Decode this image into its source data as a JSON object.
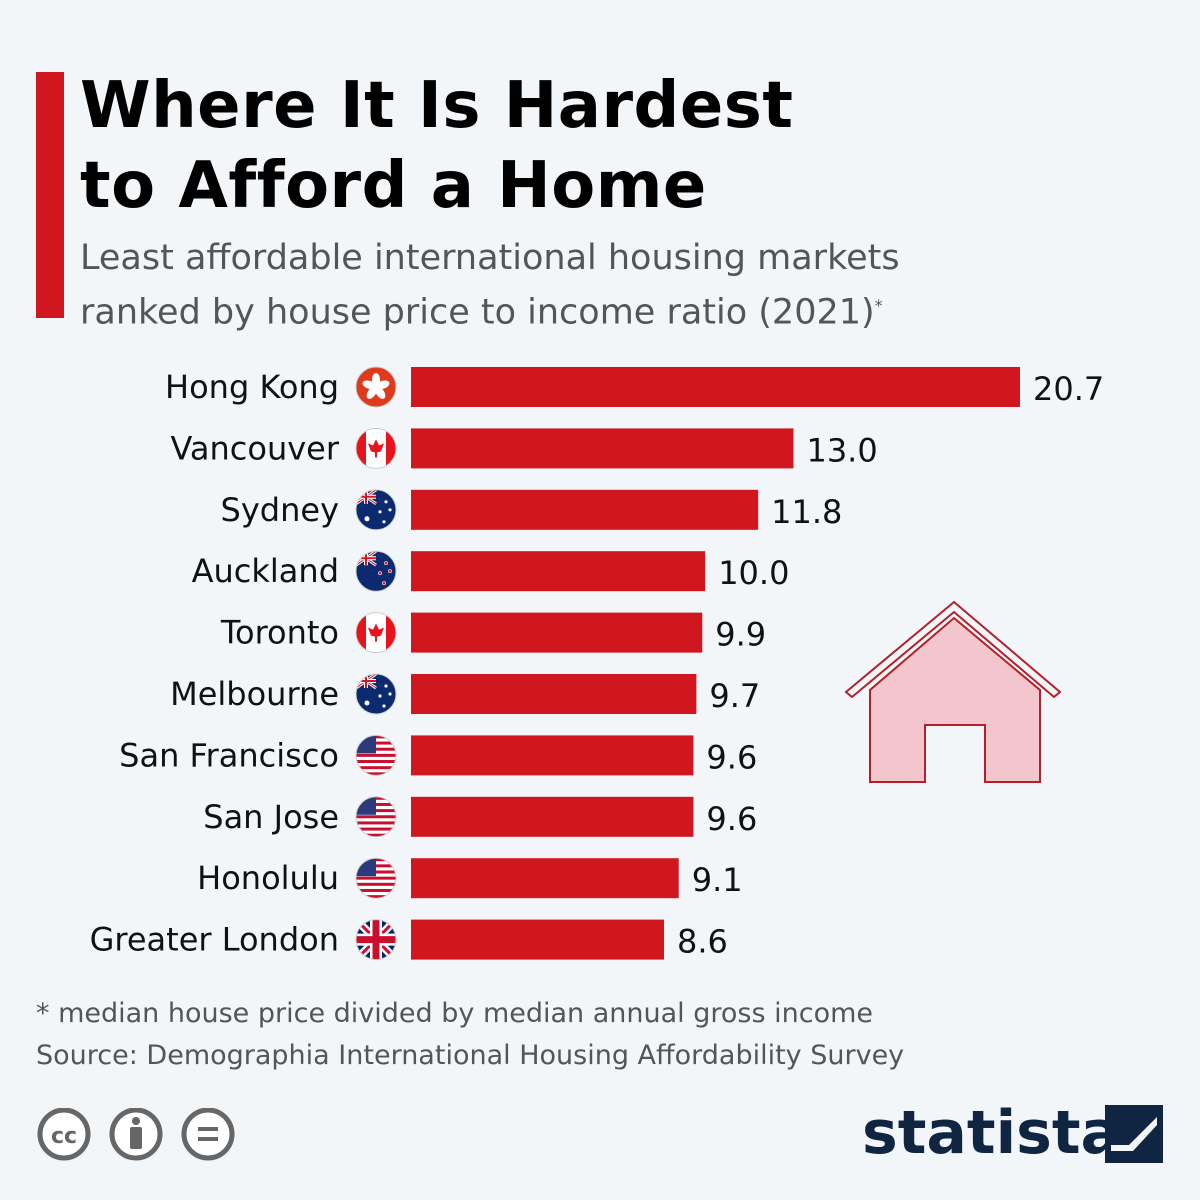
{
  "title_line1": "Where It Is Hardest",
  "title_line2": "to Afford a Home",
  "subtitle_line1": "Least affordable international housing markets",
  "subtitle_line2": "ranked by house price to income ratio (2021)",
  "subtitle_marker": "*",
  "chart_data": {
    "type": "bar",
    "orientation": "horizontal",
    "categories": [
      "Hong Kong",
      "Vancouver",
      "Sydney",
      "Auckland",
      "Toronto",
      "Melbourne",
      "San Francisco",
      "San Jose",
      "Honolulu",
      "Greater London"
    ],
    "values": [
      20.7,
      13.0,
      11.8,
      10.0,
      9.9,
      9.7,
      9.6,
      9.6,
      9.1,
      8.6
    ],
    "value_labels": [
      "20.7",
      "13.0",
      "11.8",
      "10.0",
      "9.9",
      "9.7",
      "9.6",
      "9.6",
      "9.1",
      "8.6"
    ],
    "flags": [
      "hong-kong",
      "canada",
      "australia",
      "new-zealand",
      "canada",
      "australia",
      "usa",
      "usa",
      "usa",
      "uk"
    ],
    "bar_color": "#d0171f",
    "grid": false,
    "xlim": [
      0,
      20.7
    ]
  },
  "footnote": "* median house price divided by median annual gross income",
  "source": "Source: Demographia International Housing Affordability Survey",
  "brand": "statista",
  "license_icons": [
    "cc-icon",
    "attribution-icon",
    "no-derivatives-icon"
  ]
}
